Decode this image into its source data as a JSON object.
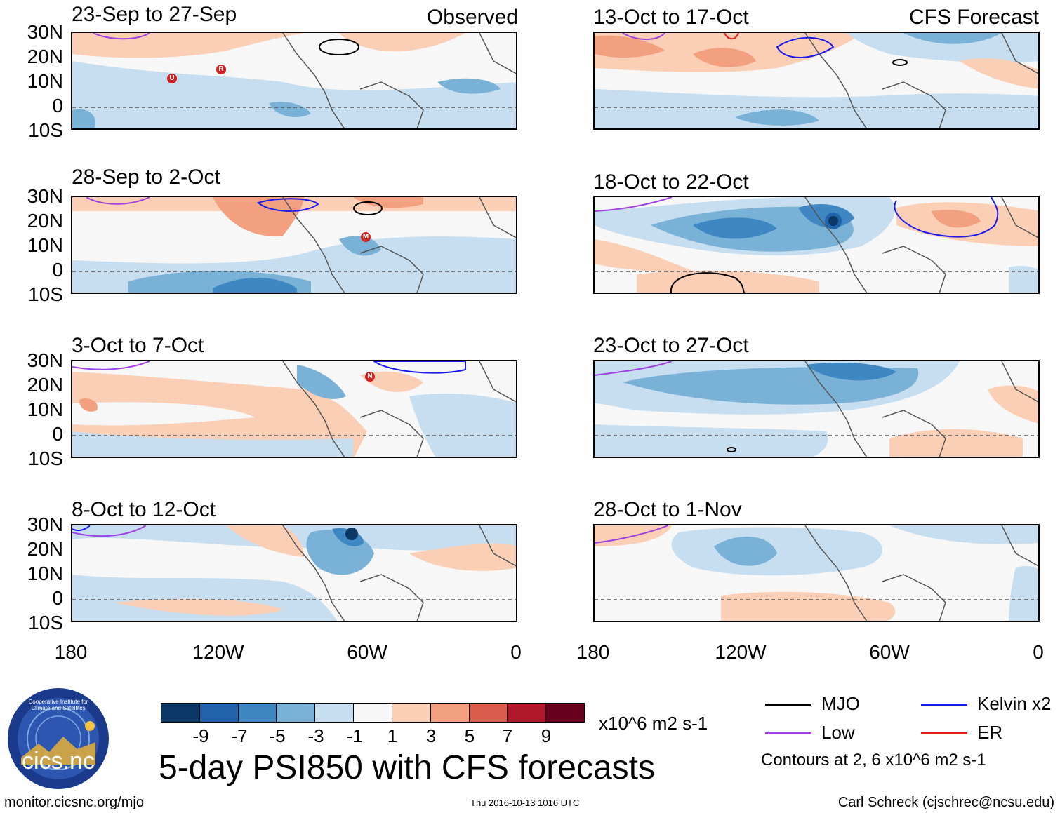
{
  "observed_label": "Observed",
  "forecast_label": "CFS Forecast",
  "panels": {
    "p1": {
      "title": "23-Sep to 27-Sep"
    },
    "p2": {
      "title": "28-Sep to 2-Oct"
    },
    "p3": {
      "title": "3-Oct to 7-Oct"
    },
    "p4": {
      "title": "8-Oct to 12-Oct"
    },
    "p5": {
      "title": "13-Oct to 17-Oct"
    },
    "p6": {
      "title": "18-Oct to 22-Oct"
    },
    "p7": {
      "title": "23-Oct to 27-Oct"
    },
    "p8": {
      "title": "28-Oct to 1-Nov"
    }
  },
  "lat_labels": [
    "30N",
    "20N",
    "10N",
    "0",
    "10S"
  ],
  "lon_labels": [
    "180",
    "120W",
    "60W",
    "0"
  ],
  "colorbar": {
    "labels": [
      "-9",
      "-7",
      "-5",
      "-3",
      "-1",
      "1",
      "3",
      "5",
      "7",
      "9"
    ],
    "colors": [
      "#0b3766",
      "#1f63aa",
      "#3f87c2",
      "#7ab1d7",
      "#c6def0",
      "#f7f7f7",
      "#fbcfb6",
      "#f2a07f",
      "#d95c4d",
      "#b2182b",
      "#67001f"
    ],
    "units": "x10^6 m2 s-1"
  },
  "legend": {
    "mjo": "MJO",
    "mjo_color": "#000000",
    "kelvin": "Kelvin x2",
    "kelvin_color": "#1a1aee",
    "low": "Low",
    "low_color": "#a040e0",
    "er": "ER",
    "er_color": "#ee1a1a",
    "contours_note": "Contours at 2, 6 x10^6 m2 s-1"
  },
  "main_title": "5-day PSI850 with CFS forecasts",
  "logo_text": "cics.nc",
  "logo_ring_text": "Cooperative Institute for Climate and Satellites",
  "footer": {
    "url": "monitor.cicsnc.org/mjo",
    "timestamp": "Thu 2016-10-13 1016 UTC",
    "author": "Carl Schreck (cjschrec@ncsu.edu)"
  },
  "storm_markers": [
    "U",
    "R",
    "M",
    "N"
  ]
}
